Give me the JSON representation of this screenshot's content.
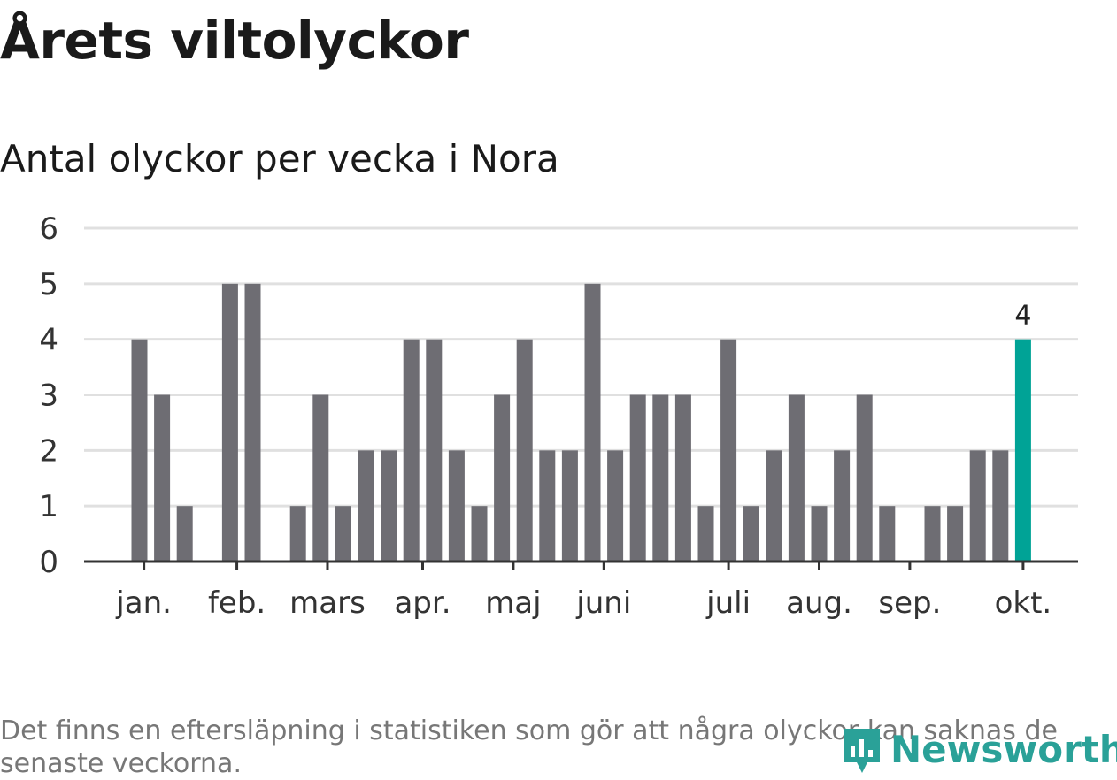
{
  "header": {
    "title": "Årets viltolyckor",
    "subtitle": "Antal olyckor per vecka i Nora"
  },
  "footer": {
    "note": "Det finns en eftersläpning i statistiken som gör att några olyckor kan saknas de senaste veckorna.",
    "logo_text": "Newsworthy"
  },
  "colors": {
    "bar": "#6e6d73",
    "highlight": "#00a396",
    "grid": "#e0e0e0",
    "axis": "#333333",
    "logo": "#2aa198"
  },
  "chart_data": {
    "type": "bar",
    "title": "Antal olyckor per vecka i Nora",
    "xlabel": "",
    "ylabel": "",
    "ylim": [
      0,
      6
    ],
    "yticks": [
      0,
      1,
      2,
      3,
      4,
      5,
      6
    ],
    "grid": true,
    "weeks": [
      1,
      2,
      3,
      4,
      5,
      6,
      7,
      8,
      9,
      10,
      11,
      12,
      13,
      14,
      15,
      16,
      17,
      18,
      19,
      20,
      21,
      22,
      23,
      24,
      25,
      26,
      27,
      28,
      29,
      30,
      31,
      32,
      33,
      34,
      35,
      36,
      37,
      38,
      39,
      40,
      41,
      42
    ],
    "values": [
      0,
      0,
      4,
      3,
      1,
      0,
      5,
      5,
      0,
      1,
      3,
      1,
      2,
      2,
      4,
      4,
      2,
      1,
      3,
      4,
      2,
      2,
      5,
      2,
      3,
      3,
      3,
      1,
      4,
      1,
      2,
      3,
      1,
      2,
      3,
      1,
      0,
      1,
      1,
      2,
      2,
      4
    ],
    "highlight_week": 42,
    "highlight_label": "4",
    "month_labels": [
      {
        "label": "jan.",
        "week": 3.2
      },
      {
        "label": "feb.",
        "week": 7.3
      },
      {
        "label": "mars",
        "week": 11.3
      },
      {
        "label": "apr.",
        "week": 15.5
      },
      {
        "label": "maj",
        "week": 19.5
      },
      {
        "label": "juni",
        "week": 23.5
      },
      {
        "label": "juli",
        "week": 29.0
      },
      {
        "label": "aug.",
        "week": 33.0
      },
      {
        "label": "sep.",
        "week": 37.0
      },
      {
        "label": "okt.",
        "week": 42.0
      }
    ]
  }
}
